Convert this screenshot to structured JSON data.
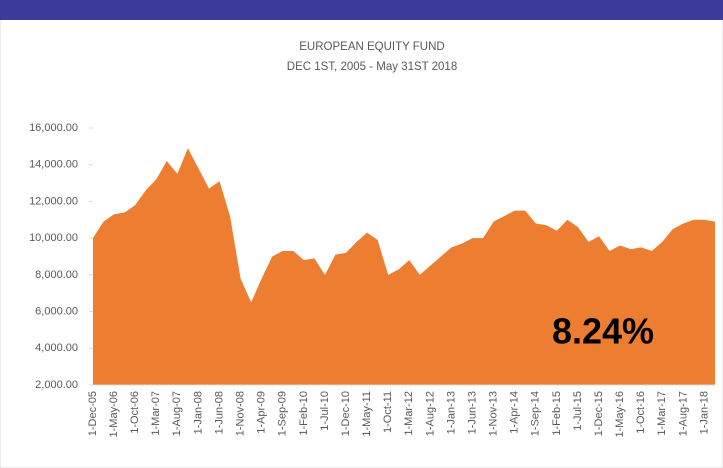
{
  "chart_data": {
    "type": "area",
    "title": "EUROPEAN EQUITY FUND",
    "subtitle": "DEC 1ST, 2005 - May 31ST 2018",
    "annotation": "8.24%",
    "color": "#ed7d31",
    "categories": [
      "1-Dec-05",
      null,
      "1-May-06",
      null,
      "1-Oct-06",
      null,
      "1-Mar-07",
      null,
      "1-Aug-07",
      null,
      "1-Jan-08",
      null,
      "1-Jun-08",
      null,
      "1-Nov-08",
      null,
      "1-Apr-09",
      null,
      "1-Sep-09",
      null,
      "1-Feb-10",
      null,
      "1-Jul-10",
      null,
      "1-Dec-10",
      null,
      "1-May-11",
      null,
      "1-Oct-11",
      null,
      "1-Mar-12",
      null,
      "1-Aug-12",
      null,
      "1-Jan-13",
      null,
      "1-Jun-13",
      null,
      "1-Nov-13",
      null,
      "1-Apr-14",
      null,
      "1-Sep-14",
      null,
      "1-Feb-15",
      null,
      "1-Jul-15",
      null,
      "1-Dec-15",
      null,
      "1-May-16",
      null,
      "1-Oct-16",
      null,
      "1-Mar-17",
      null,
      "1-Aug-17",
      null,
      "1-Jan-18",
      null
    ],
    "values": [
      10000,
      10900,
      11300,
      11400,
      11800,
      12600,
      13200,
      14200,
      13500,
      14900,
      13800,
      12700,
      13100,
      11200,
      7800,
      6500,
      7800,
      9000,
      9300,
      9300,
      8800,
      8900,
      8000,
      9100,
      9200,
      9800,
      10300,
      9900,
      8000,
      8300,
      8800,
      8000,
      8500,
      9000,
      9500,
      9700,
      10000,
      10000,
      10900,
      11200,
      11500,
      11500,
      10800,
      10700,
      10400,
      11000,
      10600,
      9800,
      10100,
      9300,
      9600,
      9400,
      9500,
      9300,
      9800,
      10500,
      10800,
      11000,
      11000,
      10900
    ],
    "ylim": [
      2000,
      16000
    ],
    "yticks": [
      {
        "value": 2000,
        "label": "2,000.00"
      },
      {
        "value": 4000,
        "label": "4,000.00"
      },
      {
        "value": 6000,
        "label": "6,000.00"
      },
      {
        "value": 8000,
        "label": "8,000.00"
      },
      {
        "value": 10000,
        "label": "10,000.00"
      },
      {
        "value": 12000,
        "label": "12,000.00"
      },
      {
        "value": 14000,
        "label": "14,000.00"
      },
      {
        "value": 16000,
        "label": "16,000.00"
      }
    ]
  }
}
